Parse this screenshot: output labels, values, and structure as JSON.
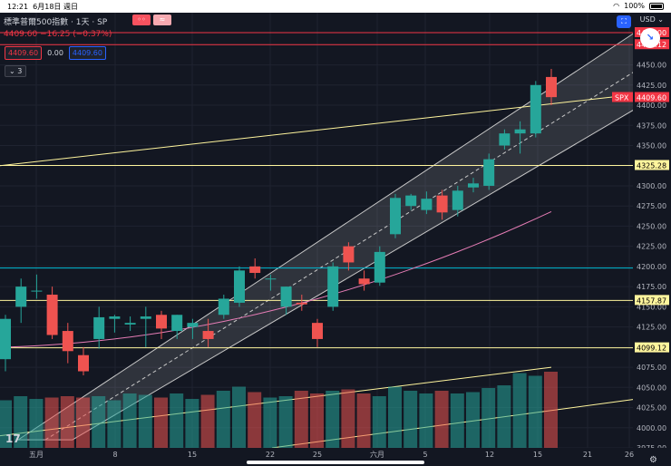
{
  "status_bar": {
    "time": "12:21",
    "date": "6月18日 週日",
    "battery": "100%"
  },
  "legend": {
    "title": "標準普爾500指數 · 1天 · SP",
    "quote": "4409.60 −16.25 (−0.37%)"
  },
  "trade": {
    "sell": "4409.60",
    "spread": "0.00",
    "buy": "4409.60"
  },
  "indicators_toggle": "3",
  "currency": "USD",
  "price_axis": {
    "ticks": [
      "4475.00",
      "4450.00",
      "4425.00",
      "4400.00",
      "4375.00",
      "4350.00",
      "4325.00",
      "4300.00",
      "4275.00",
      "4250.00",
      "4225.00",
      "4200.00",
      "4175.00",
      "4150.00",
      "4125.00",
      "4100.00",
      "4075.00",
      "4050.00",
      "4025.00",
      "4000.00",
      "3975.00"
    ],
    "labels": [
      {
        "text": "4475.12",
        "color": "#f23645"
      },
      {
        "text": "4409.60",
        "color": "#f23645",
        "prefix": "SPX"
      },
      {
        "text": "4325.28",
        "color": "#fff59d"
      },
      {
        "text": "4157.87",
        "color": "#fff59d"
      },
      {
        "text": "4099.12",
        "color": "#fff59d"
      },
      {
        "text": "4490.00",
        "color": "#f23645"
      }
    ]
  },
  "time_axis": [
    "五月",
    "8",
    "15",
    "22",
    "25",
    "六月",
    "5",
    "12",
    "15",
    "21",
    "26"
  ],
  "chart_data": {
    "type": "candlestick",
    "symbol": "SPX",
    "ylim": [
      3975,
      4490
    ],
    "candles": [
      {
        "o": 4085,
        "h": 4140,
        "l": 4070,
        "c": 4135
      },
      {
        "o": 4150,
        "h": 4185,
        "l": 4130,
        "c": 4175
      },
      {
        "o": 4170,
        "h": 4190,
        "l": 4160,
        "c": 4170
      },
      {
        "o": 4165,
        "h": 4175,
        "l": 4110,
        "c": 4115
      },
      {
        "o": 4120,
        "h": 4130,
        "l": 4080,
        "c": 4095
      },
      {
        "o": 4090,
        "h": 4100,
        "l": 4065,
        "c": 4070
      },
      {
        "o": 4110,
        "h": 4150,
        "l": 4098,
        "c": 4137
      },
      {
        "o": 4135,
        "h": 4140,
        "l": 4118,
        "c": 4138
      },
      {
        "o": 4128,
        "h": 4138,
        "l": 4120,
        "c": 4130
      },
      {
        "o": 4135,
        "h": 4150,
        "l": 4100,
        "c": 4138
      },
      {
        "o": 4140,
        "h": 4145,
        "l": 4110,
        "c": 4123
      },
      {
        "o": 4120,
        "h": 4140,
        "l": 4110,
        "c": 4140
      },
      {
        "o": 4125,
        "h": 4135,
        "l": 4110,
        "c": 4130
      },
      {
        "o": 4120,
        "h": 4135,
        "l": 4100,
        "c": 4110
      },
      {
        "o": 4140,
        "h": 4165,
        "l": 4135,
        "c": 4160
      },
      {
        "o": 4155,
        "h": 4200,
        "l": 4150,
        "c": 4195
      },
      {
        "o": 4200,
        "h": 4210,
        "l": 4185,
        "c": 4192
      },
      {
        "o": 4185,
        "h": 4190,
        "l": 4170,
        "c": 4185
      },
      {
        "o": 4150,
        "h": 4175,
        "l": 4140,
        "c": 4175
      },
      {
        "o": 4155,
        "h": 4165,
        "l": 4145,
        "c": 4153
      },
      {
        "o": 4130,
        "h": 4135,
        "l": 4100,
        "c": 4110
      },
      {
        "o": 4150,
        "h": 4205,
        "l": 4145,
        "c": 4200
      },
      {
        "o": 4225,
        "h": 4230,
        "l": 4195,
        "c": 4205
      },
      {
        "o": 4185,
        "h": 4195,
        "l": 4170,
        "c": 4178
      },
      {
        "o": 4180,
        "h": 4225,
        "l": 4176,
        "c": 4218
      },
      {
        "o": 4240,
        "h": 4290,
        "l": 4235,
        "c": 4285
      },
      {
        "o": 4275,
        "h": 4290,
        "l": 4270,
        "c": 4288
      },
      {
        "o": 4270,
        "h": 4293,
        "l": 4265,
        "c": 4284
      },
      {
        "o": 4288,
        "h": 4295,
        "l": 4258,
        "c": 4267
      },
      {
        "o": 4270,
        "h": 4300,
        "l": 4262,
        "c": 4294
      },
      {
        "o": 4298,
        "h": 4310,
        "l": 4292,
        "c": 4303
      },
      {
        "o": 4300,
        "h": 4340,
        "l": 4295,
        "c": 4333
      },
      {
        "o": 4350,
        "h": 4370,
        "l": 4345,
        "c": 4365
      },
      {
        "o": 4365,
        "h": 4380,
        "l": 4340,
        "c": 4370
      },
      {
        "o": 4365,
        "h": 4430,
        "l": 4360,
        "c": 4425
      },
      {
        "o": 4435,
        "h": 4445,
        "l": 4400,
        "c": 4410
      }
    ],
    "volumes": [
      0.35,
      0.38,
      0.36,
      0.37,
      0.38,
      0.37,
      0.38,
      0.35,
      0.4,
      0.39,
      0.37,
      0.4,
      0.36,
      0.39,
      0.42,
      0.45,
      0.41,
      0.37,
      0.38,
      0.42,
      0.4,
      0.42,
      0.43,
      0.4,
      0.38,
      0.45,
      0.42,
      0.4,
      0.42,
      0.4,
      0.41,
      0.44,
      0.46,
      0.55,
      0.53,
      0.56
    ],
    "horizontal_lines": [
      {
        "price": 4475.12,
        "color": "#f23645"
      },
      {
        "price": 4490.0,
        "color": "#f23645"
      },
      {
        "price": 4325.28,
        "color": "#fff59d"
      },
      {
        "price": 4157.87,
        "color": "#fff59d"
      },
      {
        "price": 4099.12,
        "color": "#fff59d"
      },
      {
        "price": 4198,
        "color": "#00bcd4"
      }
    ]
  }
}
